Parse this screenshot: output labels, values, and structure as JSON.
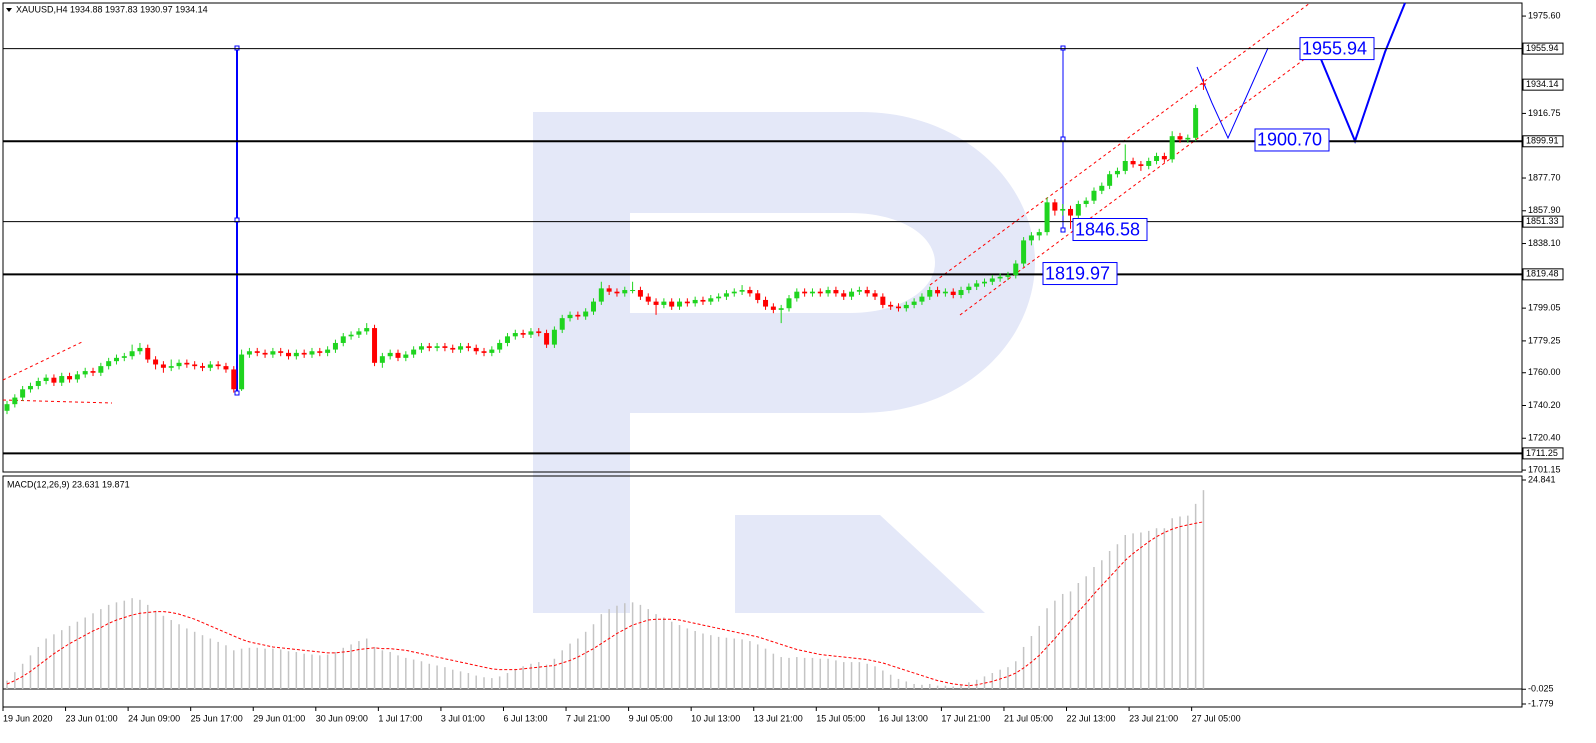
{
  "chart_data": {
    "type": "candlestick",
    "title": "XAUUSD,H4  1934.88 1937.83 1930.97 1934.14",
    "up_color": "#1fd41f",
    "down_color": "#ff0000",
    "ylim": [
      1700,
      1983.5
    ],
    "yticks": [
      {
        "value": 1975.6,
        "label": "1975.60"
      },
      {
        "value": 1916.75,
        "label": "1916.75"
      },
      {
        "value": 1877.7,
        "label": "1877.70"
      },
      {
        "value": 1857.9,
        "label": "1857.90"
      },
      {
        "value": 1838.1,
        "label": "1838.10"
      },
      {
        "value": 1799.05,
        "label": "1799.05"
      },
      {
        "value": 1779.25,
        "label": "1779.25"
      },
      {
        "value": 1760,
        "label": "1760.00"
      },
      {
        "value": 1740.2,
        "label": "1740.20"
      },
      {
        "value": 1720.4,
        "label": "1720.40"
      },
      {
        "value": 1701.15,
        "label": "1701.15"
      }
    ],
    "levels": [
      1955.94,
      1899.91,
      1851.33,
      1819.48,
      1711.25
    ],
    "last_price": 1934.14,
    "forecast_labels": [
      {
        "value": 1955.94,
        "label": "1955.94"
      },
      {
        "value": 1900.7,
        "label": "1900.70"
      },
      {
        "value": 1846.58,
        "label": "1846.58"
      },
      {
        "value": 1819.97,
        "label": "1819.97"
      }
    ],
    "xticks": [
      {
        "value": 0,
        "label": "19 Jun 2020"
      },
      {
        "value": 8,
        "label": "23 Jun 01:00"
      },
      {
        "value": 16,
        "label": "24 Jun 09:00"
      },
      {
        "value": 24,
        "label": "25 Jun 17:00"
      },
      {
        "value": 32,
        "label": "29 Jun 01:00"
      },
      {
        "value": 40,
        "label": "30 Jun 09:00"
      },
      {
        "value": 48,
        "label": "1 Jul 17:00"
      },
      {
        "value": 56,
        "label": "3 Jul 01:00"
      },
      {
        "value": 64,
        "label": "6 Jul 13:00"
      },
      {
        "value": 72,
        "label": "7 Jul 21:00"
      },
      {
        "value": 80,
        "label": "9 Jul 05:00"
      },
      {
        "value": 88,
        "label": "10 Jul 13:00"
      },
      {
        "value": 96,
        "label": "13 Jul 21:00"
      },
      {
        "value": 104,
        "label": "15 Jul 05:00"
      },
      {
        "value": 112,
        "label": "16 Jul 13:00"
      },
      {
        "value": 120,
        "label": "17 Jul 21:00"
      },
      {
        "value": 128,
        "label": "21 Jul 05:00"
      },
      {
        "value": 136,
        "label": "22 Jul 13:00"
      },
      {
        "value": 144,
        "label": "23 Jul 21:00"
      },
      {
        "value": 152,
        "label": "27 Jul 05:00"
      }
    ],
    "candles": [
      [
        1737,
        1743,
        1735,
        1741
      ],
      [
        1741,
        1747,
        1739,
        1745
      ],
      [
        1745,
        1752,
        1743,
        1750
      ],
      [
        1750,
        1754,
        1748,
        1752
      ],
      [
        1752,
        1757,
        1750,
        1755
      ],
      [
        1755,
        1759,
        1753,
        1757
      ],
      [
        1757,
        1759,
        1752,
        1754
      ],
      [
        1754,
        1760,
        1752,
        1758
      ],
      [
        1758,
        1760,
        1754,
        1756
      ],
      [
        1756,
        1761,
        1754,
        1759
      ],
      [
        1759,
        1763,
        1757,
        1761
      ],
      [
        1761,
        1763,
        1758,
        1760
      ],
      [
        1760,
        1766,
        1758,
        1764
      ],
      [
        1764,
        1769,
        1762,
        1767
      ],
      [
        1767,
        1771,
        1765,
        1769
      ],
      [
        1769,
        1772,
        1767,
        1770
      ],
      [
        1770,
        1777,
        1768,
        1773
      ],
      [
        1773,
        1778,
        1771,
        1775
      ],
      [
        1775,
        1777,
        1766,
        1768
      ],
      [
        1768,
        1770,
        1762,
        1765
      ],
      [
        1765,
        1767,
        1760,
        1763
      ],
      [
        1763,
        1768,
        1761,
        1764
      ],
      [
        1764,
        1768,
        1762,
        1766
      ],
      [
        1766,
        1768,
        1763,
        1765
      ],
      [
        1765,
        1767,
        1762,
        1764
      ],
      [
        1764,
        1766,
        1761,
        1763
      ],
      [
        1763,
        1767,
        1761,
        1765
      ],
      [
        1765,
        1767,
        1762,
        1764
      ],
      [
        1764,
        1766,
        1760,
        1762
      ],
      [
        1762,
        1764,
        1748,
        1750
      ],
      [
        1750,
        1774,
        1749,
        1771
      ],
      [
        1771,
        1775,
        1769,
        1773
      ],
      [
        1773,
        1775,
        1770,
        1772
      ],
      [
        1772,
        1774,
        1769,
        1771
      ],
      [
        1771,
        1775,
        1769,
        1773
      ],
      [
        1773,
        1775,
        1770,
        1772
      ],
      [
        1772,
        1774,
        1768,
        1770
      ],
      [
        1770,
        1774,
        1768,
        1772
      ],
      [
        1772,
        1774,
        1769,
        1771
      ],
      [
        1771,
        1775,
        1769,
        1773
      ],
      [
        1773,
        1775,
        1770,
        1772
      ],
      [
        1772,
        1776,
        1770,
        1774
      ],
      [
        1774,
        1780,
        1772,
        1778
      ],
      [
        1778,
        1784,
        1776,
        1782
      ],
      [
        1782,
        1785,
        1780,
        1783
      ],
      [
        1783,
        1787,
        1781,
        1785
      ],
      [
        1785,
        1790,
        1783,
        1787
      ],
      [
        1787,
        1789,
        1764,
        1766
      ],
      [
        1766,
        1772,
        1763,
        1770
      ],
      [
        1770,
        1774,
        1768,
        1772
      ],
      [
        1772,
        1774,
        1767,
        1769
      ],
      [
        1769,
        1773,
        1767,
        1771
      ],
      [
        1771,
        1776,
        1769,
        1774
      ],
      [
        1774,
        1778,
        1772,
        1776
      ],
      [
        1776,
        1778,
        1773,
        1775
      ],
      [
        1775,
        1778,
        1773,
        1776
      ],
      [
        1776,
        1778,
        1773,
        1775
      ],
      [
        1775,
        1777,
        1772,
        1774
      ],
      [
        1774,
        1778,
        1772,
        1776
      ],
      [
        1776,
        1778,
        1773,
        1775
      ],
      [
        1775,
        1777,
        1771,
        1773
      ],
      [
        1773,
        1775,
        1770,
        1772
      ],
      [
        1772,
        1776,
        1770,
        1774
      ],
      [
        1774,
        1780,
        1772,
        1778
      ],
      [
        1778,
        1784,
        1776,
        1782
      ],
      [
        1782,
        1786,
        1780,
        1784
      ],
      [
        1784,
        1786,
        1781,
        1783
      ],
      [
        1783,
        1787,
        1781,
        1785
      ],
      [
        1785,
        1787,
        1782,
        1784
      ],
      [
        1784,
        1786,
        1775,
        1777
      ],
      [
        1777,
        1788,
        1775,
        1786
      ],
      [
        1786,
        1795,
        1784,
        1793
      ],
      [
        1793,
        1797,
        1791,
        1795
      ],
      [
        1795,
        1797,
        1792,
        1794
      ],
      [
        1794,
        1799,
        1792,
        1797
      ],
      [
        1797,
        1805,
        1795,
        1803
      ],
      [
        1803,
        1815,
        1801,
        1811
      ],
      [
        1811,
        1813,
        1807,
        1809
      ],
      [
        1809,
        1811,
        1806,
        1808
      ],
      [
        1808,
        1812,
        1806,
        1810
      ],
      [
        1810,
        1815,
        1808,
        1810
      ],
      [
        1810,
        1812,
        1804,
        1806
      ],
      [
        1806,
        1808,
        1801,
        1803
      ],
      [
        1803,
        1805,
        1795,
        1801
      ],
      [
        1801,
        1805,
        1799,
        1803
      ],
      [
        1803,
        1805,
        1798,
        1800
      ],
      [
        1800,
        1805,
        1798,
        1803
      ],
      [
        1803,
        1805,
        1800,
        1802
      ],
      [
        1802,
        1806,
        1800,
        1804
      ],
      [
        1804,
        1806,
        1801,
        1803
      ],
      [
        1803,
        1807,
        1801,
        1805
      ],
      [
        1805,
        1808,
        1803,
        1806
      ],
      [
        1806,
        1810,
        1804,
        1808
      ],
      [
        1808,
        1811,
        1806,
        1809
      ],
      [
        1809,
        1813,
        1807,
        1810
      ],
      [
        1810,
        1812,
        1806,
        1808
      ],
      [
        1808,
        1810,
        1802,
        1804
      ],
      [
        1804,
        1806,
        1798,
        1800
      ],
      [
        1800,
        1802,
        1796,
        1798
      ],
      [
        1798,
        1801,
        1790,
        1799
      ],
      [
        1799,
        1807,
        1797,
        1805
      ],
      [
        1805,
        1811,
        1803,
        1809
      ],
      [
        1809,
        1811,
        1806,
        1808
      ],
      [
        1808,
        1811,
        1806,
        1809
      ],
      [
        1809,
        1811,
        1806,
        1808
      ],
      [
        1808,
        1812,
        1806,
        1810
      ],
      [
        1810,
        1812,
        1806,
        1808
      ],
      [
        1808,
        1810,
        1804,
        1806
      ],
      [
        1806,
        1811,
        1804,
        1809
      ],
      [
        1809,
        1812,
        1807,
        1810
      ],
      [
        1810,
        1812,
        1806,
        1808
      ],
      [
        1808,
        1810,
        1804,
        1806
      ],
      [
        1806,
        1808,
        1799,
        1801
      ],
      [
        1801,
        1803,
        1798,
        1800
      ],
      [
        1800,
        1802,
        1797,
        1799
      ],
      [
        1799,
        1803,
        1797,
        1801
      ],
      [
        1801,
        1805,
        1799,
        1803
      ],
      [
        1803,
        1808,
        1801,
        1806
      ],
      [
        1806,
        1812,
        1804,
        1810
      ],
      [
        1810,
        1812,
        1806,
        1808
      ],
      [
        1808,
        1811,
        1806,
        1809
      ],
      [
        1809,
        1811,
        1805,
        1807
      ],
      [
        1807,
        1812,
        1805,
        1810
      ],
      [
        1810,
        1814,
        1808,
        1812
      ],
      [
        1812,
        1816,
        1810,
        1814
      ],
      [
        1814,
        1817,
        1812,
        1815
      ],
      [
        1815,
        1819,
        1813,
        1817
      ],
      [
        1817,
        1820,
        1815,
        1818
      ],
      [
        1818,
        1821,
        1816,
        1819
      ],
      [
        1819,
        1828,
        1817,
        1826
      ],
      [
        1826,
        1842,
        1824,
        1840
      ],
      [
        1840,
        1845,
        1837,
        1843
      ],
      [
        1843,
        1847,
        1840,
        1845
      ],
      [
        1845,
        1866,
        1843,
        1863
      ],
      [
        1863,
        1865,
        1855,
        1858
      ],
      [
        1858,
        1862,
        1855,
        1859
      ],
      [
        1859,
        1861,
        1847,
        1855
      ],
      [
        1855,
        1864,
        1853,
        1862
      ],
      [
        1862,
        1866,
        1860,
        1864
      ],
      [
        1864,
        1872,
        1862,
        1870
      ],
      [
        1870,
        1875,
        1868,
        1873
      ],
      [
        1873,
        1882,
        1871,
        1880
      ],
      [
        1880,
        1884,
        1878,
        1882
      ],
      [
        1882,
        1898,
        1880,
        1888
      ],
      [
        1888,
        1890,
        1884,
        1886
      ],
      [
        1886,
        1888,
        1882,
        1885
      ],
      [
        1885,
        1890,
        1883,
        1888
      ],
      [
        1888,
        1893,
        1886,
        1891
      ],
      [
        1891,
        1893,
        1887,
        1889
      ],
      [
        1889,
        1906,
        1887,
        1903
      ],
      [
        1903,
        1905,
        1899,
        1901
      ],
      [
        1901,
        1904,
        1899,
        1902
      ],
      [
        1902,
        1922,
        1900,
        1920
      ],
      [
        1934.88,
        1937.83,
        1930.97,
        1934.14
      ]
    ],
    "macd": {
      "title": "MACD(12,26,9) 23.631 19.871",
      "ylim": [
        -1.779,
        24.841
      ],
      "yticks": [
        24.841,
        -0.025,
        -1.779
      ],
      "histogram": [
        1.0,
        2.0,
        3.0,
        4.0,
        5.0,
        6.0,
        6.5,
        7.0,
        7.5,
        8.0,
        8.5,
        9.0,
        9.5,
        10.0,
        10.3,
        10.5,
        10.8,
        10.6,
        10.0,
        9.3,
        8.7,
        8.2,
        7.7,
        7.2,
        6.8,
        6.4,
        6.0,
        5.6,
        5.2,
        4.6,
        4.8,
        4.9,
        4.9,
        4.8,
        4.8,
        4.7,
        4.5,
        4.4,
        4.2,
        4.1,
        4.0,
        4.1,
        4.4,
        4.9,
        5.3,
        5.7,
        6.0,
        5.0,
        4.6,
        4.4,
        4.0,
        3.7,
        3.5,
        3.3,
        3.0,
        2.8,
        2.6,
        2.3,
        2.1,
        1.9,
        1.6,
        1.4,
        1.3,
        1.5,
        1.9,
        2.4,
        2.7,
        3.0,
        3.2,
        2.9,
        3.6,
        4.6,
        5.4,
        6.0,
        6.8,
        7.7,
        8.9,
        9.5,
        9.9,
        10.2,
        10.3,
        10.0,
        9.5,
        8.9,
        8.5,
        8.0,
        7.6,
        7.2,
        6.9,
        6.6,
        6.4,
        6.2,
        6.1,
        6.0,
        5.9,
        5.7,
        5.3,
        4.8,
        4.2,
        3.8,
        3.7,
        3.8,
        3.7,
        3.7,
        3.6,
        3.6,
        3.4,
        3.2,
        3.2,
        3.2,
        3.0,
        2.7,
        2.2,
        1.7,
        1.2,
        0.9,
        0.6,
        0.5,
        0.6,
        0.4,
        0.4,
        0.3,
        0.5,
        0.8,
        1.1,
        1.5,
        1.9,
        2.3,
        2.6,
        3.3,
        5.0,
        6.3,
        7.5,
        9.6,
        10.5,
        11.3,
        11.6,
        12.6,
        13.4,
        14.5,
        15.3,
        16.4,
        17.2,
        18.3,
        18.5,
        18.6,
        18.8,
        19.1,
        19.1,
        20.3,
        20.5,
        20.6,
        22.0,
        23.631
      ],
      "signal": [
        0.6,
        1.0,
        1.5,
        2.1,
        2.8,
        3.5,
        4.2,
        4.8,
        5.4,
        5.9,
        6.4,
        6.9,
        7.3,
        7.8,
        8.2,
        8.5,
        8.8,
        9.0,
        9.1,
        9.2,
        9.2,
        9.1,
        8.9,
        8.6,
        8.3,
        7.9,
        7.5,
        7.1,
        6.7,
        6.3,
        5.9,
        5.6,
        5.4,
        5.2,
        5.0,
        4.9,
        4.8,
        4.7,
        4.6,
        4.5,
        4.4,
        4.3,
        4.3,
        4.4,
        4.5,
        4.7,
        4.8,
        4.9,
        4.8,
        4.8,
        4.7,
        4.6,
        4.4,
        4.2,
        4.0,
        3.8,
        3.6,
        3.4,
        3.2,
        3.0,
        2.8,
        2.6,
        2.4,
        2.3,
        2.3,
        2.3,
        2.4,
        2.5,
        2.6,
        2.7,
        2.8,
        3.1,
        3.4,
        3.8,
        4.3,
        4.8,
        5.4,
        6.0,
        6.6,
        7.1,
        7.6,
        7.9,
        8.2,
        8.3,
        8.3,
        8.3,
        8.2,
        8.0,
        7.8,
        7.6,
        7.4,
        7.2,
        7.0,
        6.8,
        6.6,
        6.4,
        6.2,
        5.9,
        5.6,
        5.3,
        5.0,
        4.7,
        4.5,
        4.3,
        4.1,
        4.0,
        3.9,
        3.8,
        3.7,
        3.6,
        3.5,
        3.3,
        3.1,
        2.8,
        2.5,
        2.2,
        1.9,
        1.6,
        1.3,
        1.0,
        0.8,
        0.6,
        0.5,
        0.4,
        0.5,
        0.7,
        0.9,
        1.2,
        1.5,
        1.9,
        2.5,
        3.2,
        4.0,
        5.0,
        6.0,
        7.1,
        8.1,
        9.2,
        10.2,
        11.3,
        12.3,
        13.3,
        14.3,
        15.3,
        16.1,
        16.8,
        17.5,
        18.1,
        18.6,
        19.0,
        19.3,
        19.5,
        19.7,
        19.871
      ]
    }
  }
}
